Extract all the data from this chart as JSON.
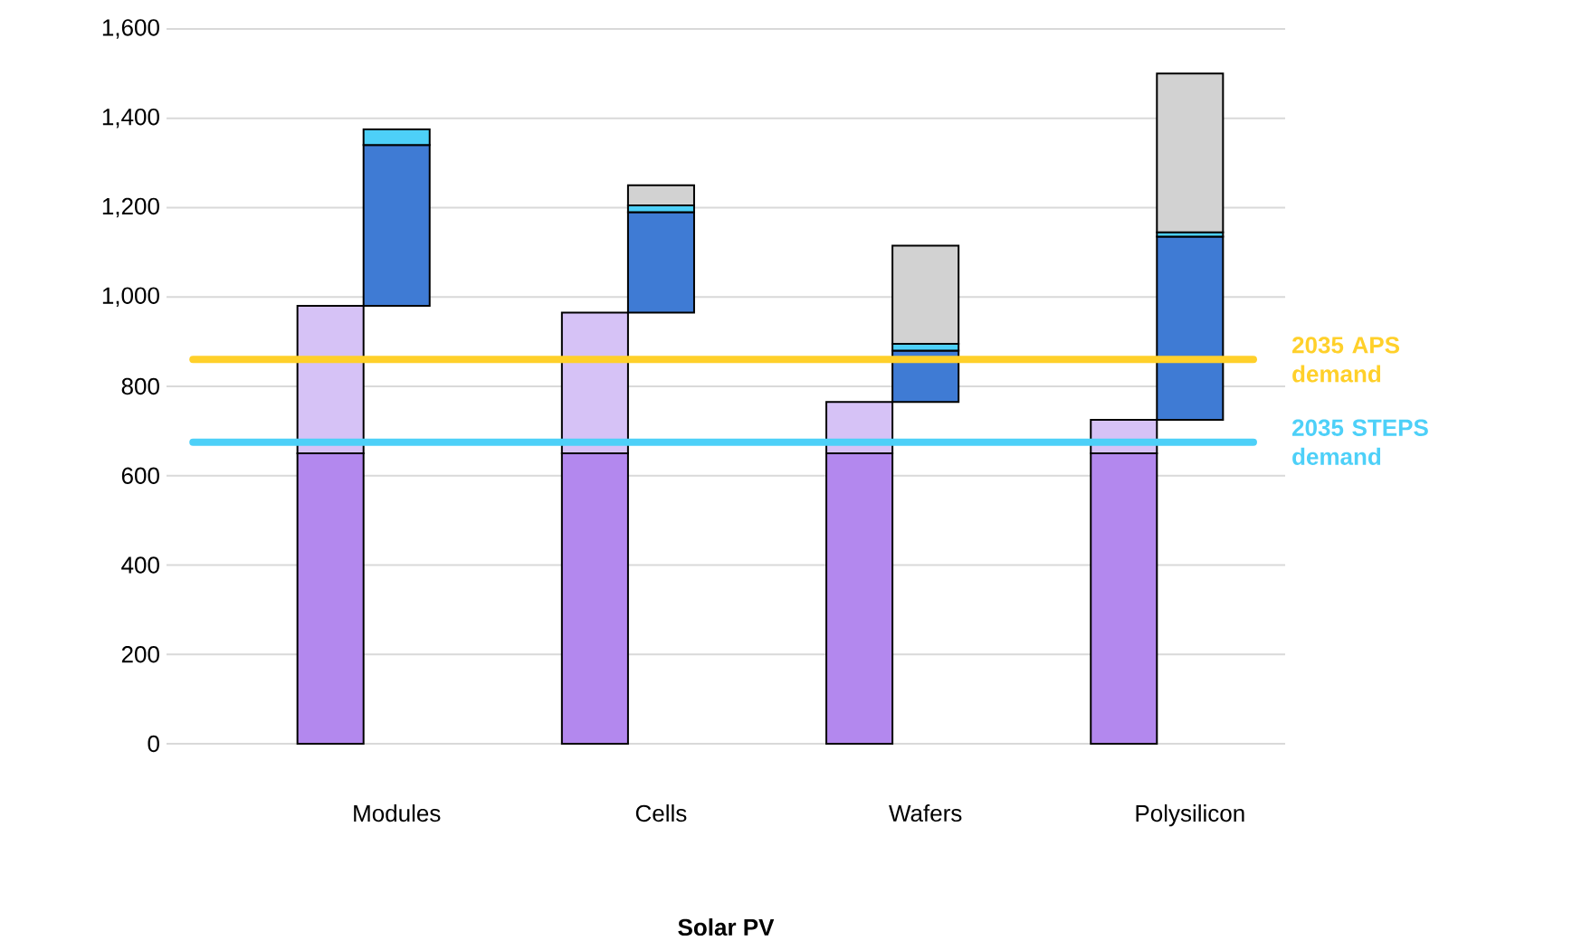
{
  "chart_data": {
    "type": "bar",
    "stacked": true,
    "categories": [
      "Modules",
      "Cells",
      "Wafers",
      "Polysilicon"
    ],
    "xlabel": "Solar PV",
    "series": [
      {
        "color": "#b388ee",
        "values": [
          650,
          650,
          650,
          650
        ]
      },
      {
        "color": "#d6c2f6",
        "values": [
          330,
          315,
          115,
          75
        ]
      },
      {
        "color": "#3f7bd4",
        "base": [
          980,
          965,
          765,
          725
        ],
        "values": [
          360,
          225,
          115,
          410
        ]
      },
      {
        "color": "#4dd0f8",
        "values": [
          35,
          15,
          15,
          10
        ]
      },
      {
        "color": "#d2d2d2",
        "values": [
          null,
          45,
          220,
          355
        ]
      }
    ],
    "ylim": [
      0,
      1600
    ],
    "yticks": [
      0,
      200,
      400,
      600,
      800,
      {
        "value": 1000,
        "label": "1,000"
      },
      {
        "value": 1200,
        "label": "1,200"
      },
      {
        "value": 1400,
        "label": "1,400"
      },
      {
        "value": 1600,
        "label": "1,600"
      }
    ],
    "grid": "y",
    "ref_lines": [
      {
        "axis": "y",
        "value": 860,
        "label": "2035 APS demand",
        "color": "#ffd02a"
      },
      {
        "axis": "y",
        "value": 675,
        "label": "2035 STEPS demand",
        "color": "#4dd0f8"
      }
    ]
  }
}
